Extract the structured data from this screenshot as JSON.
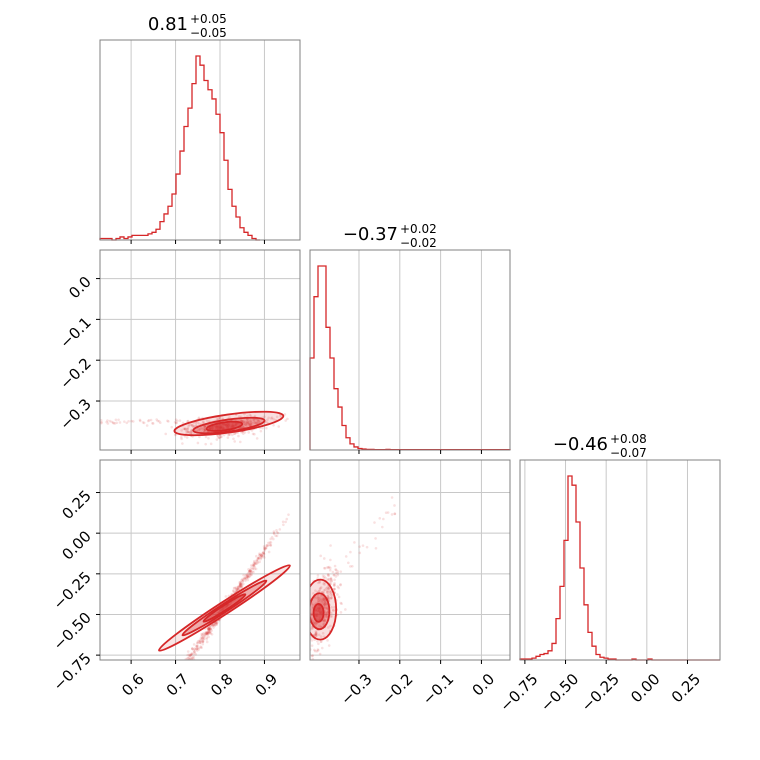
{
  "chart_data": {
    "type": "corner",
    "accent_color": "#d62728",
    "grid": true,
    "parameters": [
      {
        "title_value": "0.81",
        "title_plus": "+0.05",
        "title_minus": "−0.05",
        "range": [
          0.53,
          0.98
        ],
        "ticks": [
          {
            "v": 0.6,
            "label": "0.6"
          },
          {
            "v": 0.7,
            "label": "0.7"
          },
          {
            "v": 0.8,
            "label": "0.8"
          },
          {
            "v": 0.9,
            "label": "0.9"
          }
        ]
      },
      {
        "title_value": "−0.37",
        "title_plus": "+0.02",
        "title_minus": "−0.02",
        "range": [
          -0.42,
          0.07
        ],
        "ticks": [
          {
            "v": -0.3,
            "label": "−0.3"
          },
          {
            "v": -0.2,
            "label": "−0.2"
          },
          {
            "v": -0.1,
            "label": "−0.1"
          },
          {
            "v": 0.0,
            "label": "0.0"
          }
        ]
      },
      {
        "title_value": "−0.46",
        "title_plus": "+0.08",
        "title_minus": "−0.07",
        "range": [
          -0.78,
          0.45
        ],
        "ticks": [
          {
            "v": -0.75,
            "label": "−0.75"
          },
          {
            "v": -0.5,
            "label": "−0.50"
          },
          {
            "v": -0.25,
            "label": "−0.25"
          },
          {
            "v": 0.0,
            "label": "0.00"
          },
          {
            "v": 0.25,
            "label": "0.25"
          }
        ]
      }
    ],
    "histograms": [
      {
        "edges_start": 0.53,
        "bin_width": 0.009,
        "counts": [
          1,
          1,
          1,
          0,
          1,
          2,
          1,
          2,
          3,
          3,
          3,
          3,
          4,
          5,
          7,
          12,
          17,
          22,
          30,
          43,
          58,
          74,
          86,
          102,
          120,
          114,
          104,
          98,
          92,
          82,
          70,
          52,
          33,
          22,
          15,
          8,
          5,
          3,
          1,
          0
        ]
      },
      {
        "edges_start": -0.42,
        "bin_width": 0.0098,
        "counts": [
          3,
          5,
          6,
          6,
          4,
          3,
          2,
          1.4,
          0.8,
          0.4,
          0.2,
          0.1,
          0.05,
          0.03,
          0.02,
          0.02,
          0.01,
          0.01,
          0.01,
          0.02,
          0.01,
          0.01,
          0.01,
          0.01,
          0.01,
          0.01,
          0.01,
          0.01,
          0.01,
          0.01,
          0.01,
          0.01,
          0.01,
          0.01,
          0.01,
          0.01,
          0.01,
          0.01,
          0.01,
          0.01,
          0.01,
          0.01,
          0.01,
          0.01,
          0.01,
          0.01,
          0.01,
          0.01,
          0.01,
          0.01
        ]
      },
      {
        "edges_start": -0.78,
        "bin_width": 0.0246,
        "counts": [
          1,
          1,
          1,
          2,
          4,
          6,
          7,
          10,
          18,
          45,
          80,
          130,
          200,
          190,
          150,
          100,
          60,
          30,
          15,
          6,
          3,
          2,
          1,
          1,
          0,
          0,
          0,
          0,
          1,
          0,
          0,
          0,
          1,
          0,
          0,
          0,
          0,
          0,
          0,
          0,
          0,
          0,
          0,
          0,
          0,
          0,
          0,
          0,
          0,
          0
        ]
      }
    ],
    "scatter_pairs": [
      {
        "x_param": 0,
        "y_param": 1
      },
      {
        "x_param": 0,
        "y_param": 2
      },
      {
        "x_param": 1,
        "y_param": 2
      }
    ]
  }
}
